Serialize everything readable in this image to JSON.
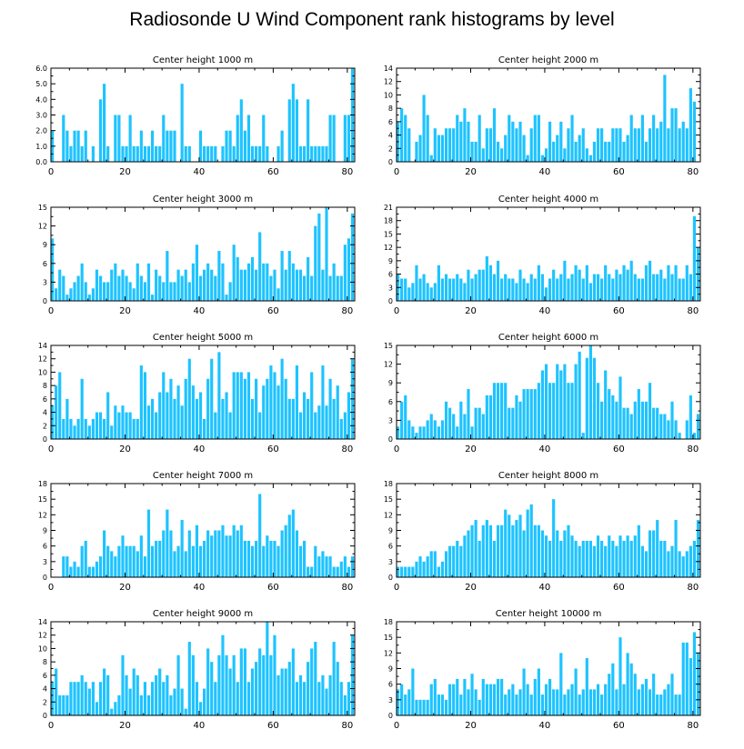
{
  "title": "Radiosonde U Wind Component rank histograms by level",
  "colors": {
    "bar": "#1ec3ff",
    "axis": "#000000"
  },
  "chart_data": [
    {
      "type": "bar",
      "title": "Center height 1000 m",
      "xlim": [
        0,
        82
      ],
      "xticks": [
        0,
        20,
        40,
        60,
        80
      ],
      "ylim": [
        0,
        6
      ],
      "yticks": [
        0,
        1,
        2,
        3,
        4,
        5,
        6
      ],
      "ytick_labels": [
        "0.0",
        "1.0",
        "2.0",
        "3.0",
        "4.0",
        "5.0",
        "6.0"
      ],
      "values": [
        2,
        0,
        0,
        3,
        2,
        1,
        2,
        2,
        1,
        2,
        0,
        1,
        0,
        4,
        5,
        1,
        0,
        3,
        3,
        1,
        1,
        3,
        1,
        1,
        2,
        1,
        1,
        2,
        1,
        1,
        3,
        2,
        2,
        2,
        0,
        5,
        1,
        1,
        0,
        0,
        2,
        1,
        1,
        1,
        1,
        0,
        1,
        2,
        2,
        1,
        3,
        4,
        2,
        3,
        1,
        1,
        1,
        3,
        1,
        0,
        0,
        1,
        2,
        0,
        4,
        5,
        4,
        1,
        1,
        4,
        1,
        1,
        1,
        1,
        1,
        3,
        3,
        0,
        0,
        3,
        3,
        6
      ]
    },
    {
      "type": "bar",
      "title": "Center height 2000 m",
      "xlim": [
        0,
        82
      ],
      "xticks": [
        0,
        20,
        40,
        60,
        80
      ],
      "ylim": [
        0,
        14
      ],
      "yticks": [
        0,
        2,
        4,
        6,
        8,
        10,
        12,
        14
      ],
      "ytick_labels": [
        "0",
        "2",
        "4",
        "6",
        "8",
        "10",
        "12",
        "14"
      ],
      "values": [
        6,
        8,
        7,
        5,
        0,
        3,
        4,
        10,
        7,
        1,
        5,
        4,
        4,
        5,
        5,
        5,
        7,
        6,
        8,
        6,
        3,
        3,
        7,
        2,
        5,
        5,
        8,
        3,
        2,
        4,
        7,
        6,
        5,
        6,
        4,
        1,
        5,
        7,
        7,
        1,
        2,
        6,
        3,
        4,
        6,
        2,
        5,
        7,
        3,
        4,
        5,
        2,
        1,
        3,
        5,
        5,
        3,
        3,
        5,
        5,
        5,
        3,
        4,
        7,
        5,
        5,
        7,
        3,
        5,
        7,
        5,
        6,
        13,
        5,
        8,
        8,
        5,
        6,
        5,
        11,
        9
      ]
    },
    {
      "type": "bar",
      "title": "Center height 3000 m",
      "xlim": [
        0,
        82
      ],
      "xticks": [
        0,
        20,
        40,
        60,
        80
      ],
      "ylim": [
        0,
        15
      ],
      "yticks": [
        0,
        3,
        6,
        9,
        12,
        15
      ],
      "ytick_labels": [
        "0",
        "3",
        "6",
        "9",
        "12",
        "15"
      ],
      "values": [
        10,
        2,
        5,
        4,
        1,
        2,
        3,
        4,
        6,
        3,
        1,
        2,
        5,
        4,
        3,
        3,
        5,
        6,
        4,
        5,
        4,
        3,
        2,
        6,
        4,
        3,
        6,
        1,
        5,
        4,
        3,
        8,
        3,
        3,
        5,
        4,
        5,
        3,
        6,
        9,
        4,
        5,
        6,
        5,
        4,
        8,
        6,
        1,
        3,
        9,
        7,
        5,
        5,
        6,
        7,
        5,
        11,
        6,
        6,
        4,
        5,
        2,
        8,
        5,
        8,
        6,
        5,
        5,
        4,
        7,
        4,
        12,
        14,
        5,
        15,
        4,
        6,
        4,
        4,
        9,
        10,
        14
      ]
    },
    {
      "type": "bar",
      "title": "Center height 4000 m",
      "xlim": [
        0,
        82
      ],
      "xticks": [
        0,
        20,
        40,
        60,
        80
      ],
      "ylim": [
        0,
        21
      ],
      "yticks": [
        0,
        3,
        6,
        9,
        12,
        15,
        18,
        21
      ],
      "ytick_labels": [
        "0",
        "3",
        "6",
        "9",
        "12",
        "15",
        "18",
        "21"
      ],
      "values": [
        6,
        5,
        5,
        3,
        4,
        8,
        5,
        6,
        4,
        3,
        4,
        8,
        5,
        6,
        5,
        5,
        6,
        5,
        4,
        7,
        5,
        6,
        7,
        7,
        10,
        8,
        6,
        9,
        5,
        6,
        5,
        5,
        4,
        7,
        5,
        4,
        6,
        5,
        8,
        6,
        3,
        5,
        7,
        5,
        6,
        9,
        5,
        6,
        8,
        7,
        5,
        8,
        4,
        6,
        6,
        5,
        8,
        6,
        5,
        7,
        6,
        8,
        7,
        9,
        6,
        5,
        5,
        8,
        9,
        6,
        6,
        7,
        5,
        8,
        6,
        8,
        5,
        5,
        8,
        6,
        19,
        12
      ]
    },
    {
      "type": "bar",
      "title": "Center height 5000 m",
      "xlim": [
        0,
        82
      ],
      "xticks": [
        0,
        20,
        40,
        60,
        80
      ],
      "ylim": [
        0,
        14
      ],
      "yticks": [
        0,
        2,
        4,
        6,
        8,
        10,
        12,
        14
      ],
      "ytick_labels": [
        "0",
        "2",
        "4",
        "6",
        "8",
        "10",
        "12",
        "14"
      ],
      "values": [
        5,
        8,
        10,
        3,
        6,
        3,
        2,
        3,
        9,
        3,
        2,
        3,
        4,
        4,
        3,
        7,
        2,
        5,
        4,
        5,
        4,
        4,
        3,
        3,
        11,
        10,
        5,
        6,
        4,
        7,
        10,
        7,
        9,
        6,
        8,
        5,
        9,
        12,
        8,
        6,
        7,
        3,
        9,
        12,
        4,
        13,
        6,
        7,
        4,
        10,
        10,
        10,
        9,
        10,
        6,
        9,
        4,
        8,
        9,
        11,
        10,
        8,
        12,
        9,
        6,
        6,
        11,
        4,
        7,
        6,
        10,
        4,
        5,
        11,
        5,
        9,
        6,
        8,
        3,
        4,
        7,
        12
      ]
    },
    {
      "type": "bar",
      "title": "Center height 6000 m",
      "xlim": [
        0,
        82
      ],
      "xticks": [
        0,
        20,
        40,
        60,
        80
      ],
      "ylim": [
        0,
        15
      ],
      "yticks": [
        0,
        3,
        6,
        9,
        12,
        15
      ],
      "ytick_labels": [
        "0",
        "3",
        "6",
        "9",
        "12",
        "15"
      ],
      "values": [
        2,
        6,
        7,
        3,
        2,
        1,
        2,
        2,
        3,
        4,
        3,
        2,
        3,
        6,
        5,
        4,
        2,
        6,
        4,
        8,
        2,
        5,
        5,
        4,
        7,
        7,
        9,
        9,
        9,
        9,
        5,
        5,
        7,
        6,
        8,
        8,
        8,
        8,
        9,
        11,
        12,
        9,
        9,
        12,
        11,
        12,
        9,
        9,
        12,
        14,
        1,
        13,
        15,
        13,
        9,
        6,
        11,
        8,
        7,
        6,
        10,
        5,
        5,
        4,
        6,
        8,
        6,
        6,
        9,
        5,
        5,
        4,
        4,
        3,
        6,
        3,
        1,
        0,
        3,
        7,
        1,
        4
      ]
    },
    {
      "type": "bar",
      "title": "Center height 7000 m",
      "xlim": [
        0,
        82
      ],
      "xticks": [
        0,
        20,
        40,
        60,
        80
      ],
      "ylim": [
        0,
        18
      ],
      "yticks": [
        0,
        3,
        6,
        9,
        12,
        15,
        18
      ],
      "ytick_labels": [
        "0",
        "3",
        "6",
        "9",
        "12",
        "15",
        "18"
      ],
      "values": [
        0,
        0,
        0,
        4,
        4,
        2,
        3,
        2,
        6,
        7,
        2,
        2,
        3,
        4,
        9,
        6,
        5,
        4,
        6,
        8,
        6,
        6,
        6,
        5,
        8,
        4,
        13,
        6,
        7,
        7,
        9,
        13,
        9,
        5,
        6,
        11,
        5,
        9,
        6,
        10,
        6,
        7,
        9,
        8,
        9,
        9,
        10,
        8,
        8,
        10,
        9,
        10,
        7,
        7,
        6,
        7,
        16,
        6,
        8,
        7,
        7,
        6,
        9,
        10,
        12,
        13,
        9,
        6,
        7,
        2,
        2,
        6,
        4,
        5,
        4,
        4,
        2,
        2,
        3,
        4,
        2,
        4
      ]
    },
    {
      "type": "bar",
      "title": "Center height 8000 m",
      "xlim": [
        0,
        82
      ],
      "xticks": [
        0,
        20,
        40,
        60,
        80
      ],
      "ylim": [
        0,
        18
      ],
      "yticks": [
        0,
        3,
        6,
        9,
        12,
        15,
        18
      ],
      "ytick_labels": [
        "0",
        "3",
        "6",
        "9",
        "12",
        "15",
        "18"
      ],
      "values": [
        2,
        2,
        2,
        2,
        2,
        3,
        4,
        3,
        4,
        5,
        5,
        2,
        3,
        5,
        6,
        6,
        7,
        6,
        8,
        9,
        10,
        11,
        7,
        10,
        11,
        10,
        7,
        10,
        10,
        13,
        12,
        10,
        11,
        12,
        9,
        13,
        14,
        10,
        10,
        9,
        8,
        7,
        15,
        9,
        7,
        9,
        10,
        8,
        7,
        6,
        7,
        7,
        7,
        6,
        8,
        7,
        6,
        8,
        7,
        6,
        8,
        7,
        8,
        7,
        8,
        10,
        6,
        5,
        9,
        9,
        11,
        7,
        7,
        5,
        6,
        11,
        5,
        4,
        5,
        6,
        7,
        11
      ]
    },
    {
      "type": "bar",
      "title": "Center height 9000 m",
      "xlim": [
        0,
        82
      ],
      "xticks": [
        0,
        20,
        40,
        60,
        80
      ],
      "ylim": [
        0,
        14
      ],
      "yticks": [
        0,
        2,
        4,
        6,
        8,
        10,
        12,
        14
      ],
      "ytick_labels": [
        "0",
        "2",
        "4",
        "6",
        "8",
        "10",
        "12",
        "14"
      ],
      "values": [
        5,
        7,
        3,
        3,
        3,
        5,
        5,
        5,
        6,
        5,
        4,
        5,
        2,
        5,
        7,
        6,
        1,
        2,
        3,
        9,
        6,
        4,
        7,
        6,
        3,
        5,
        3,
        5,
        6,
        7,
        5,
        6,
        3,
        4,
        9,
        4,
        1,
        11,
        9,
        5,
        2,
        4,
        10,
        8,
        5,
        9,
        12,
        9,
        7,
        9,
        5,
        10,
        10,
        5,
        7,
        8,
        10,
        9,
        14,
        9,
        12,
        6,
        7,
        7,
        8,
        10,
        5,
        6,
        5,
        8,
        10,
        11,
        5,
        6,
        4,
        6,
        11,
        8,
        5,
        3,
        5,
        12
      ]
    },
    {
      "type": "bar",
      "title": "Center height 10000 m",
      "xlim": [
        0,
        82
      ],
      "xticks": [
        0,
        20,
        40,
        60,
        80
      ],
      "ylim": [
        0,
        18
      ],
      "yticks": [
        0,
        3,
        6,
        9,
        12,
        15,
        18
      ],
      "ytick_labels": [
        "0",
        "3",
        "6",
        "9",
        "12",
        "15",
        "18"
      ],
      "values": [
        5,
        6,
        4,
        5,
        9,
        3,
        3,
        3,
        3,
        6,
        7,
        4,
        4,
        3,
        6,
        6,
        7,
        4,
        7,
        5,
        8,
        5,
        3,
        7,
        6,
        6,
        6,
        7,
        7,
        4,
        5,
        6,
        4,
        5,
        9,
        6,
        4,
        7,
        9,
        4,
        6,
        7,
        5,
        5,
        12,
        4,
        5,
        6,
        9,
        4,
        5,
        11,
        5,
        5,
        6,
        4,
        6,
        8,
        10,
        5,
        15,
        6,
        12,
        10,
        8,
        5,
        6,
        7,
        5,
        8,
        4,
        4,
        5,
        6,
        8,
        4,
        4,
        14,
        14,
        11,
        16,
        12
      ]
    }
  ]
}
